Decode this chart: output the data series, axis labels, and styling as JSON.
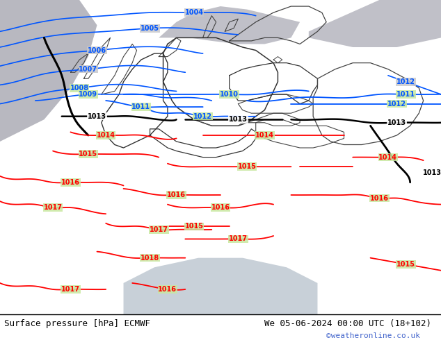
{
  "title_left": "Surface pressure [hPa] ECMWF",
  "title_right": "We 05-06-2024 00:00 UTC (18+102)",
  "copyright": "©weatheronline.co.uk",
  "bg_color_land": "#c8e8a0",
  "bg_color_ocean": "#b8b8c0",
  "bg_color_sea_gray": "#c0c0c8",
  "bottom_bg": "#ffffff",
  "text_color_left": "#000000",
  "text_color_right": "#000000",
  "text_color_copyright": "#4466cc",
  "blue_line_color": "#0055ff",
  "red_line_color": "#ff0000",
  "black_line_color": "#000000",
  "border_color": "#444444",
  "figsize": [
    6.34,
    4.9
  ],
  "dpi": 100
}
